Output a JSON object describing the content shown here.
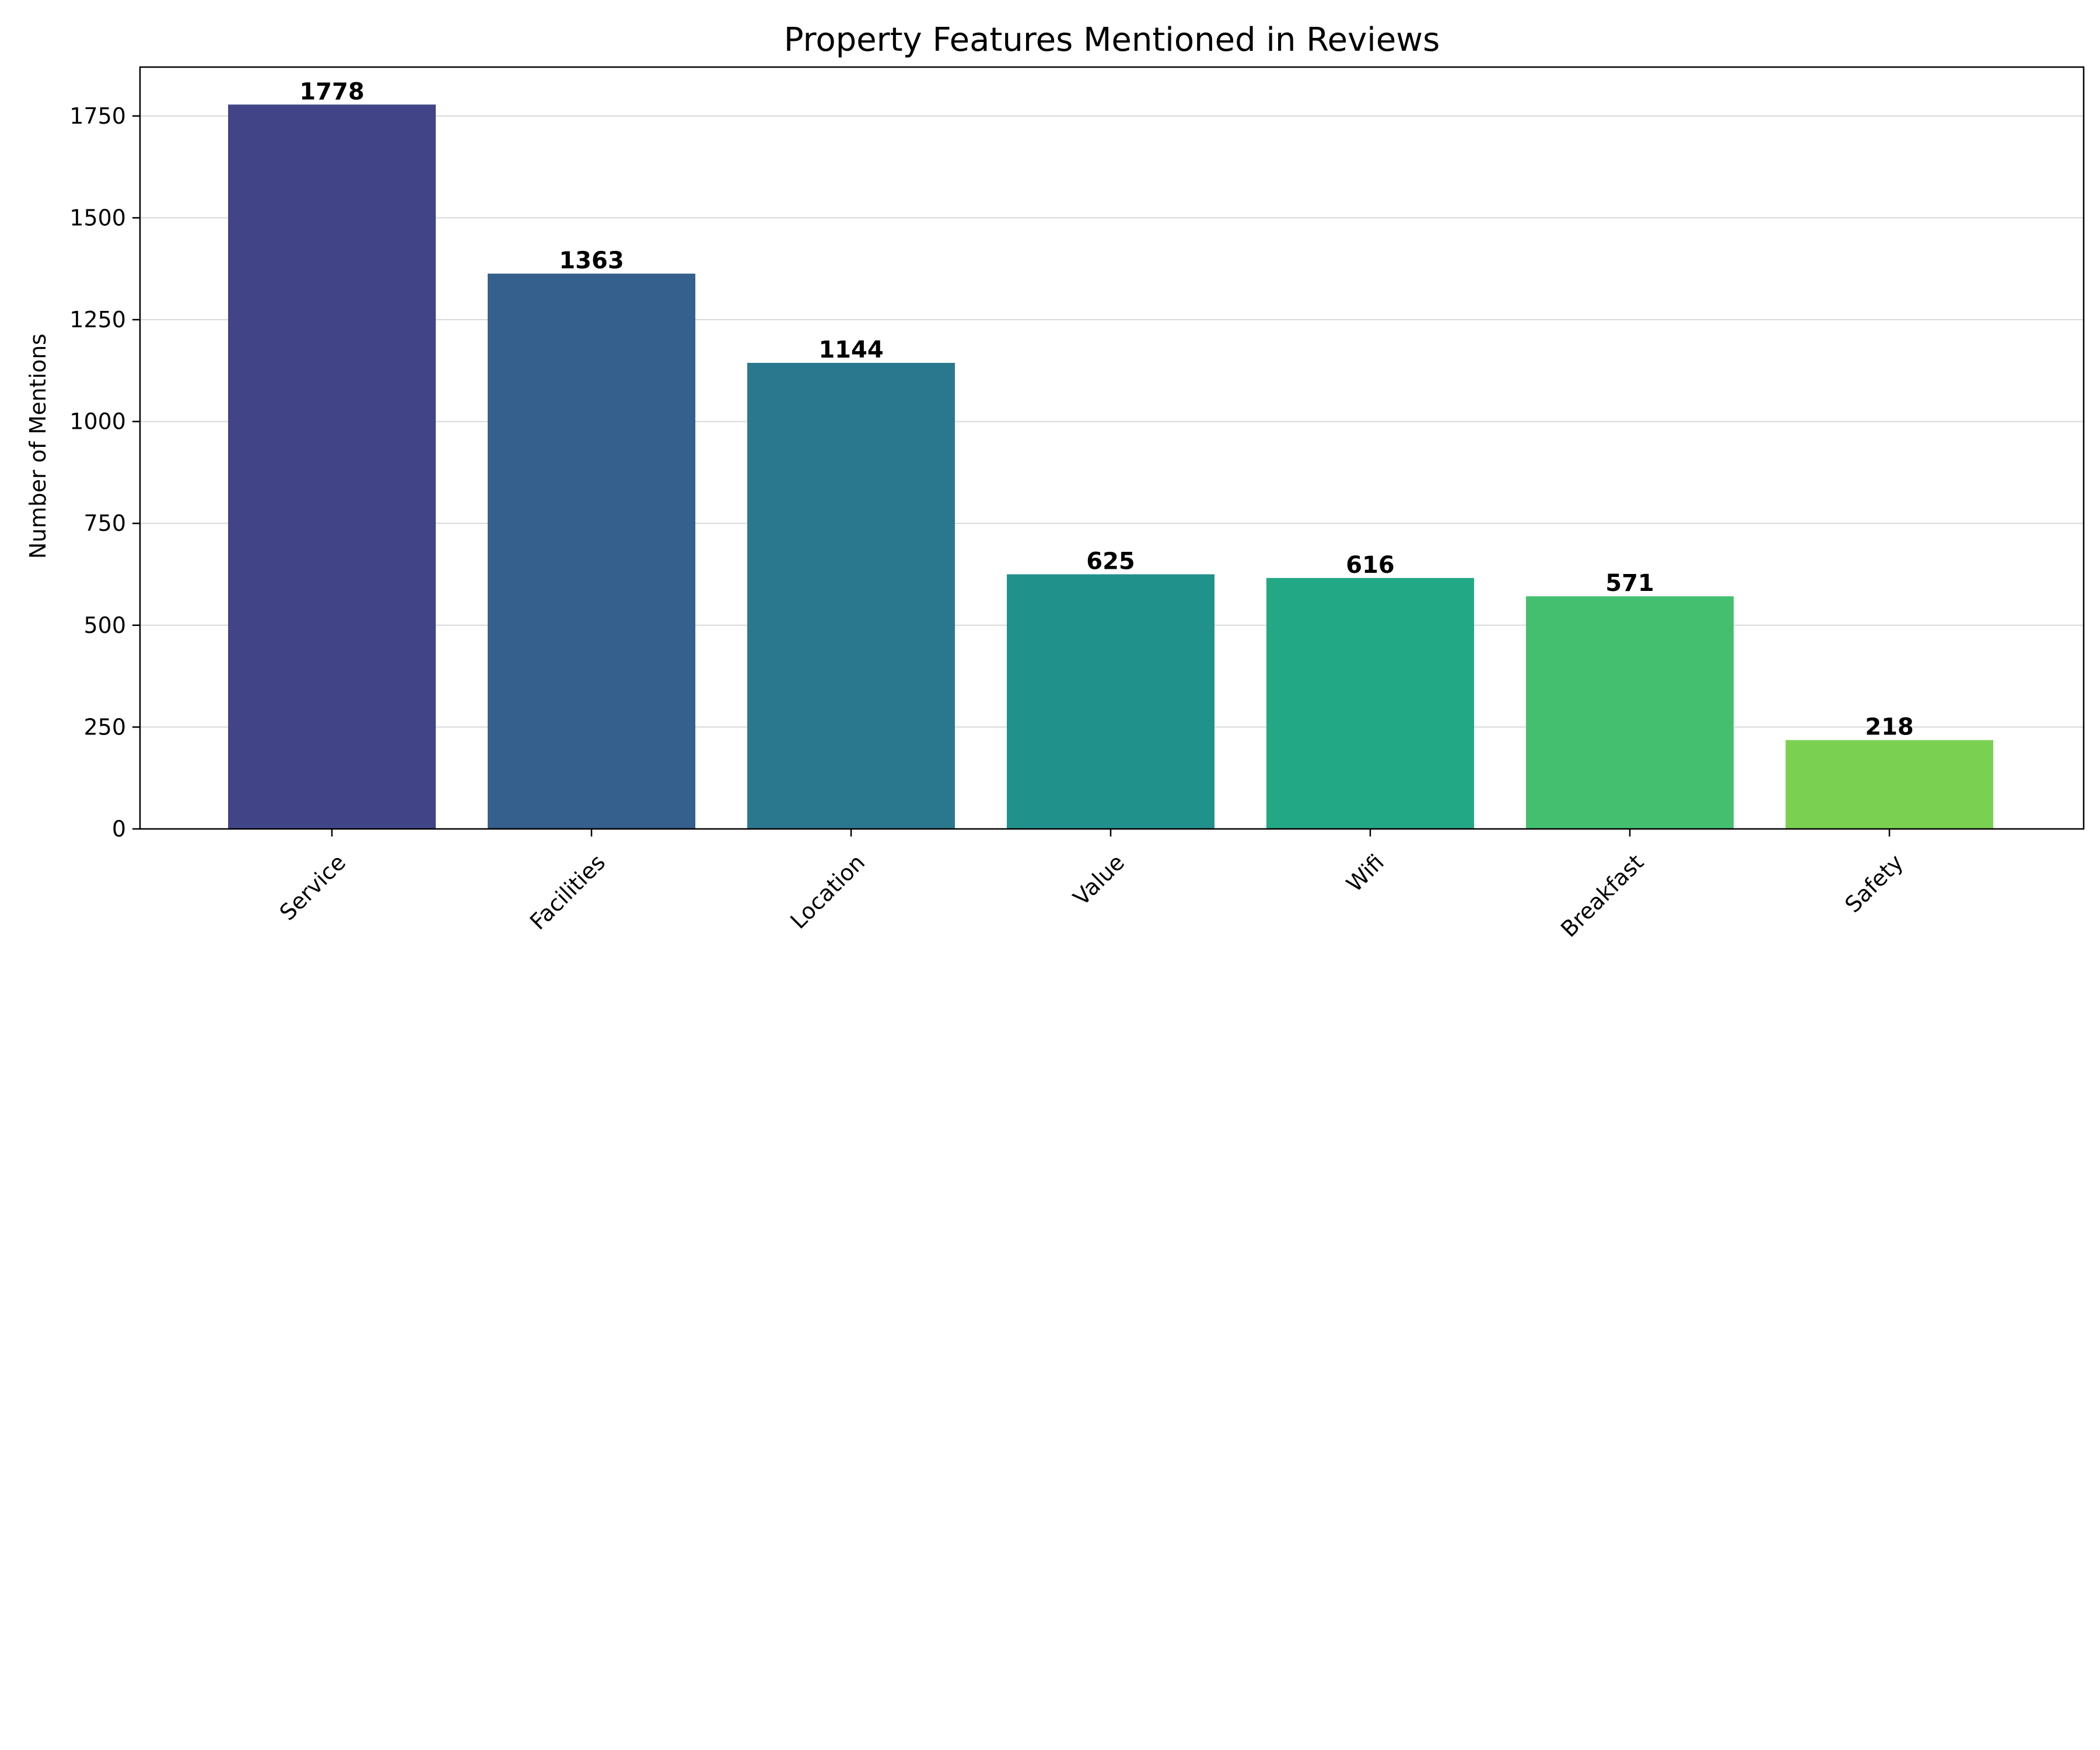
{
  "chart_data": {
    "type": "bar",
    "title": "Property Features Mentioned in Reviews",
    "xlabel": "",
    "ylabel": "Number of Mentions",
    "categories": [
      "Service",
      "Facilities",
      "Location",
      "Value",
      "Wifi",
      "Breakfast",
      "Safety"
    ],
    "values": [
      1778,
      1363,
      1144,
      625,
      616,
      571,
      218
    ],
    "value_labels": [
      "1778",
      "1363",
      "1144",
      "625",
      "616",
      "571",
      "218"
    ],
    "colors": [
      "#414487",
      "#355f8d",
      "#2a788e",
      "#21918c",
      "#22a884",
      "#44bf70",
      "#7ad151"
    ],
    "ylim": [
      0,
      1870
    ],
    "yticks": [
      0,
      250,
      500,
      750,
      1000,
      1250,
      1500,
      1750
    ],
    "ytick_labels": [
      "0",
      "250",
      "500",
      "750",
      "1000",
      "1250",
      "1500",
      "1750"
    ],
    "grid": "y",
    "grid_color": "#cccccc",
    "legend": "none"
  }
}
